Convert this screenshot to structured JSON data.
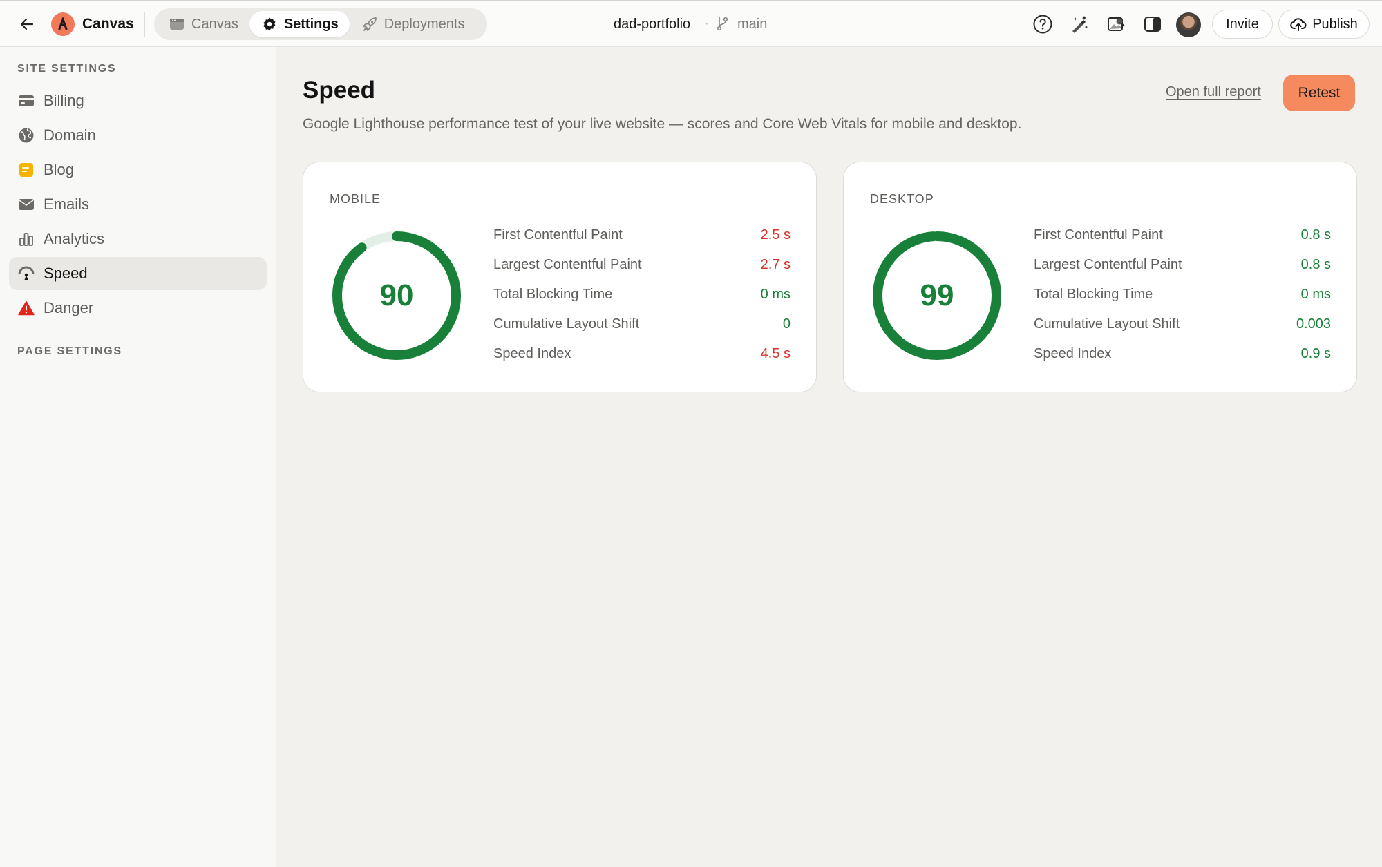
{
  "topbar": {
    "app_name": "Canvas",
    "tabs": [
      {
        "label": "Canvas",
        "icon": "browser-window-icon",
        "active": false
      },
      {
        "label": "Settings",
        "icon": "gear-icon",
        "active": true
      },
      {
        "label": "Deployments",
        "icon": "rocket-icon",
        "active": false
      }
    ],
    "project_name": "dad-portfolio",
    "separator": "·",
    "branch": "main",
    "invite_label": "Invite",
    "publish_label": "Publish"
  },
  "sidebar": {
    "site_settings_title": "SITE SETTINGS",
    "items": [
      {
        "label": "Billing",
        "icon": "credit-card-icon",
        "active": false
      },
      {
        "label": "Domain",
        "icon": "globe-icon",
        "active": false
      },
      {
        "label": "Blog",
        "icon": "note-icon",
        "active": false
      },
      {
        "label": "Emails",
        "icon": "envelope-icon",
        "active": false
      },
      {
        "label": "Analytics",
        "icon": "bar-chart-icon",
        "active": false
      },
      {
        "label": "Speed",
        "icon": "speedometer-icon",
        "active": true
      },
      {
        "label": "Danger",
        "icon": "warning-icon",
        "active": false
      }
    ],
    "page_settings_title": "PAGE SETTINGS"
  },
  "main": {
    "title": "Speed",
    "description": "Google Lighthouse performance test of your live website — scores and Core Web Vitals for mobile and desktop.",
    "report_link": "Open full report",
    "retest_label": "Retest",
    "cards": [
      {
        "label": "MOBILE",
        "score": 90,
        "score_display": "90",
        "metrics": [
          {
            "name": "First Contentful Paint",
            "value": "2.5 s",
            "status": "bad"
          },
          {
            "name": "Largest Contentful Paint",
            "value": "2.7 s",
            "status": "bad"
          },
          {
            "name": "Total Blocking Time",
            "value": "0 ms",
            "status": "good"
          },
          {
            "name": "Cumulative Layout Shift",
            "value": "0",
            "status": "good"
          },
          {
            "name": "Speed Index",
            "value": "4.5 s",
            "status": "bad"
          }
        ]
      },
      {
        "label": "DESKTOP",
        "score": 99,
        "score_display": "99",
        "metrics": [
          {
            "name": "First Contentful Paint",
            "value": "0.8 s",
            "status": "good"
          },
          {
            "name": "Largest Contentful Paint",
            "value": "0.8 s",
            "status": "good"
          },
          {
            "name": "Total Blocking Time",
            "value": "0 ms",
            "status": "good"
          },
          {
            "name": "Cumulative Layout Shift",
            "value": "0.003",
            "status": "good"
          },
          {
            "name": "Speed Index",
            "value": "0.9 s",
            "status": "good"
          }
        ]
      }
    ]
  },
  "colors": {
    "good": "#188038",
    "bad": "#d93025",
    "gauge_track": "#e3efe6",
    "accent": "#f58a5f",
    "logo": "#f07a5a"
  }
}
